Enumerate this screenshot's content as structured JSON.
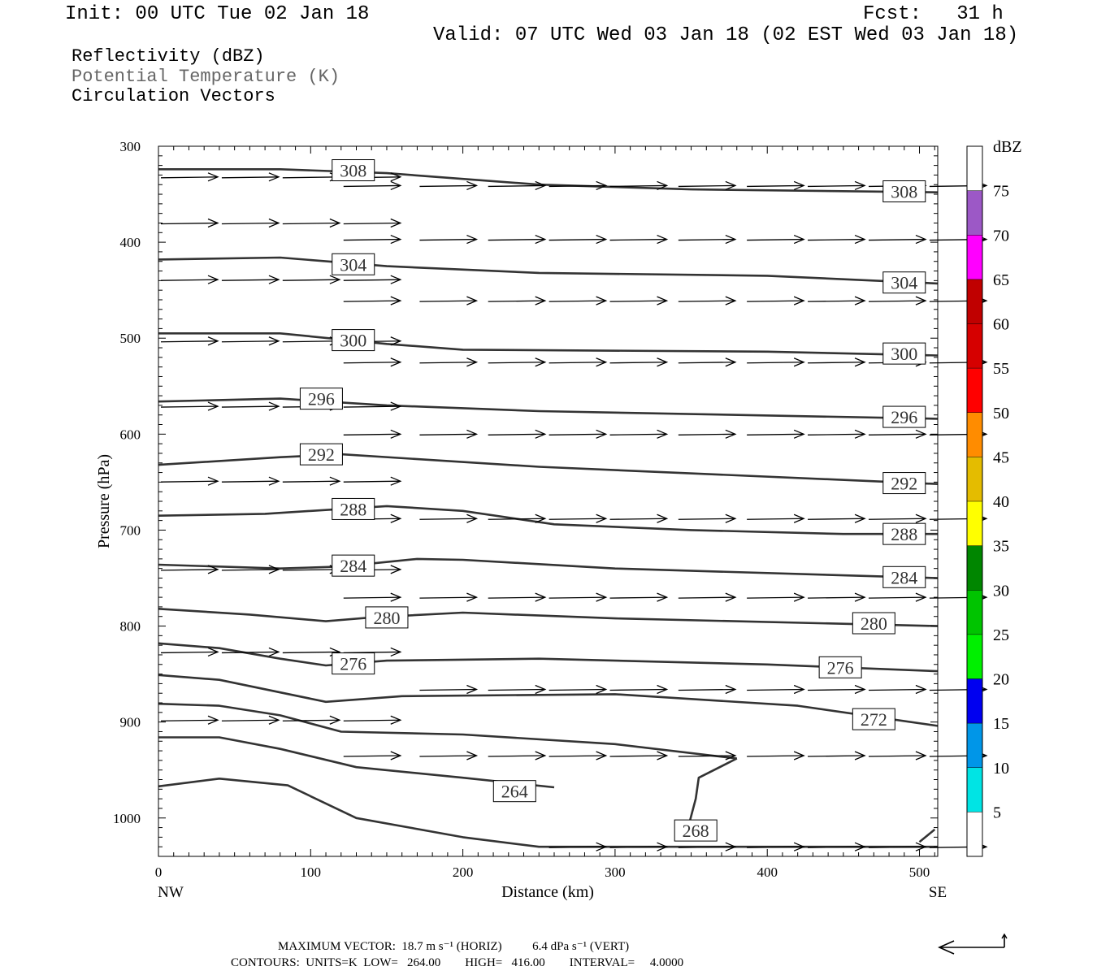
{
  "header": {
    "init": "Init: 00 UTC Tue 02 Jan 18",
    "fcst": "Fcst:   31 h",
    "valid": "Valid: 07 UTC Wed 03 Jan 18 (02 EST Wed 03 Jan 18)"
  },
  "legend_lines": {
    "reflectivity": "Reflectivity (dBZ)",
    "theta": "Potential Temperature (K)",
    "vectors": "Circulation Vectors"
  },
  "colors": {
    "contour": "#333333",
    "theta_text": "#666666",
    "frame": "#000000"
  },
  "chart_data": {
    "type": "cross-section",
    "xlabel": "Distance (km)",
    "ylabel": "Pressure (hPa)",
    "x_left_label": "NW",
    "x_right_label": "SE",
    "xlim": [
      0,
      512
    ],
    "ylim": [
      1040,
      300
    ],
    "x_ticks": [
      0,
      100,
      200,
      300,
      400,
      500
    ],
    "y_ticks": [
      300,
      400,
      500,
      600,
      700,
      800,
      900,
      1000
    ],
    "colorbar": {
      "unit": "dBZ",
      "levels": [
        5,
        10,
        15,
        20,
        25,
        30,
        35,
        40,
        45,
        50,
        55,
        60,
        65,
        70,
        75
      ],
      "colors": [
        "#00e4e4",
        "#0096e8",
        "#0000f0",
        "#00f000",
        "#00c400",
        "#008600",
        "#ffff00",
        "#e4bc00",
        "#ff8c00",
        "#ff0000",
        "#d60000",
        "#c00000",
        "#ff00ff",
        "#9c58c6"
      ]
    },
    "contours": [
      {
        "label": "308",
        "points": [
          [
            0,
            324
          ],
          [
            80,
            324
          ],
          [
            150,
            328
          ],
          [
            250,
            340
          ],
          [
            350,
            345
          ],
          [
            512,
            348
          ]
        ],
        "labels_at": [
          [
            128,
            325
          ],
          [
            490,
            347
          ]
        ]
      },
      {
        "label": "304",
        "points": [
          [
            0,
            418
          ],
          [
            80,
            416
          ],
          [
            150,
            425
          ],
          [
            250,
            432
          ],
          [
            400,
            435
          ],
          [
            512,
            443
          ]
        ],
        "labels_at": [
          [
            128,
            423
          ],
          [
            490,
            442
          ]
        ]
      },
      {
        "label": "300",
        "points": [
          [
            0,
            495
          ],
          [
            80,
            495
          ],
          [
            150,
            506
          ],
          [
            200,
            512
          ],
          [
            400,
            514
          ],
          [
            512,
            518
          ]
        ],
        "labels_at": [
          [
            128,
            502
          ],
          [
            490,
            516
          ]
        ]
      },
      {
        "label": "296",
        "points": [
          [
            0,
            566
          ],
          [
            80,
            563
          ],
          [
            150,
            570
          ],
          [
            250,
            576
          ],
          [
            512,
            584
          ]
        ],
        "labels_at": [
          [
            107,
            563
          ],
          [
            490,
            582
          ]
        ]
      },
      {
        "label": "292",
        "points": [
          [
            0,
            632
          ],
          [
            80,
            624
          ],
          [
            120,
            621
          ],
          [
            250,
            634
          ],
          [
            512,
            652
          ]
        ],
        "labels_at": [
          [
            107,
            621
          ],
          [
            490,
            651
          ]
        ]
      },
      {
        "label": "288",
        "points": [
          [
            0,
            685
          ],
          [
            70,
            683
          ],
          [
            150,
            675
          ],
          [
            200,
            680
          ],
          [
            260,
            694
          ],
          [
            350,
            700
          ],
          [
            450,
            704
          ],
          [
            512,
            704
          ]
        ],
        "labels_at": [
          [
            128,
            678
          ],
          [
            490,
            704
          ]
        ]
      },
      {
        "label": "284",
        "points": [
          [
            0,
            736
          ],
          [
            80,
            740
          ],
          [
            120,
            738
          ],
          [
            170,
            730
          ],
          [
            200,
            731
          ],
          [
            300,
            740
          ],
          [
            512,
            750
          ]
        ],
        "labels_at": [
          [
            128,
            737
          ],
          [
            490,
            749
          ]
        ]
      },
      {
        "label": "280",
        "points": [
          [
            0,
            782
          ],
          [
            60,
            788
          ],
          [
            110,
            795
          ],
          [
            140,
            791
          ],
          [
            200,
            786
          ],
          [
            300,
            792
          ],
          [
            512,
            800
          ]
        ],
        "labels_at": [
          [
            150,
            791
          ],
          [
            470,
            797
          ]
        ]
      },
      {
        "label": "276",
        "points": [
          [
            0,
            818
          ],
          [
            40,
            823
          ],
          [
            80,
            834
          ],
          [
            110,
            841
          ],
          [
            150,
            836
          ],
          [
            250,
            834
          ],
          [
            400,
            840
          ],
          [
            512,
            847
          ]
        ],
        "labels_at": [
          [
            128,
            839
          ],
          [
            448,
            843
          ]
        ]
      },
      {
        "label": "272",
        "points": [
          [
            0,
            851
          ],
          [
            40,
            856
          ],
          [
            110,
            879
          ],
          [
            160,
            873
          ],
          [
            300,
            871
          ],
          [
            420,
            883
          ],
          [
            512,
            904
          ]
        ],
        "labels_at": [
          [
            470,
            897
          ]
        ]
      },
      {
        "label": "",
        "points": [
          [
            0,
            881
          ],
          [
            40,
            883
          ],
          [
            80,
            893
          ],
          [
            120,
            910
          ],
          [
            200,
            913
          ],
          [
            300,
            923
          ],
          [
            380,
            938
          ]
        ]
      },
      {
        "label": "264",
        "points": [
          [
            0,
            916
          ],
          [
            40,
            916
          ],
          [
            80,
            928
          ],
          [
            130,
            947
          ],
          [
            200,
            958
          ],
          [
            260,
            968
          ]
        ],
        "labels_at": [
          [
            234,
            972
          ]
        ]
      },
      {
        "label": "268",
        "points": [
          [
            380,
            938
          ],
          [
            355,
            958
          ],
          [
            353,
            980
          ],
          [
            348,
            1010
          ]
        ],
        "labels_at": [
          [
            353,
            1013
          ]
        ]
      },
      {
        "label": "",
        "points": [
          [
            0,
            967
          ],
          [
            40,
            959
          ],
          [
            85,
            966
          ],
          [
            130,
            1000
          ],
          [
            200,
            1020
          ],
          [
            250,
            1030
          ],
          [
            512,
            1030
          ]
        ]
      },
      {
        "label": "",
        "points": [
          [
            510,
            1012
          ],
          [
            500,
            1025
          ]
        ]
      }
    ],
    "vector_rows": [
      {
        "p": 332,
        "x": [
          0,
          40,
          80,
          120
        ]
      },
      {
        "p": 341,
        "x": [
          120,
          170,
          215,
          255,
          295,
          340,
          385,
          425,
          465,
          505
        ]
      },
      {
        "p": 380,
        "x": [
          0,
          40,
          80,
          120
        ]
      },
      {
        "p": 397,
        "x": [
          120,
          170,
          215,
          255,
          295,
          340,
          385,
          425,
          465,
          505
        ]
      },
      {
        "p": 439,
        "x": [
          0,
          40,
          80,
          120
        ]
      },
      {
        "p": 461,
        "x": [
          120,
          170,
          215,
          255,
          295,
          340,
          385,
          425,
          465,
          505
        ]
      },
      {
        "p": 503,
        "x": [
          0,
          40,
          80,
          120
        ]
      },
      {
        "p": 525,
        "x": [
          120,
          170,
          215,
          255,
          295,
          340,
          385,
          425,
          465,
          505
        ]
      },
      {
        "p": 571,
        "x": [
          0,
          40,
          80,
          120
        ]
      },
      {
        "p": 600,
        "x": [
          120,
          170,
          215,
          255,
          295,
          340,
          385,
          425,
          465,
          505
        ]
      },
      {
        "p": 649,
        "x": [
          0,
          40,
          80,
          120
        ]
      },
      {
        "p": 688,
        "x": [
          120,
          170,
          215,
          255,
          295,
          340,
          385,
          425,
          465,
          505
        ]
      },
      {
        "p": 741,
        "x": [
          0,
          40,
          80,
          120
        ]
      },
      {
        "p": 770,
        "x": [
          120,
          170,
          215,
          255,
          295,
          340,
          385,
          425,
          465,
          505
        ]
      },
      {
        "p": 827,
        "x": [
          0,
          40,
          80,
          120
        ]
      },
      {
        "p": 866,
        "x": [
          170,
          215,
          255,
          295,
          340,
          385,
          425,
          465,
          505
        ]
      },
      {
        "p": 898,
        "x": [
          0,
          40,
          80,
          120
        ]
      },
      {
        "p": 935,
        "x": [
          120,
          170,
          215,
          255,
          295,
          340,
          385,
          425,
          465,
          505
        ]
      },
      {
        "p": 1030,
        "x": [
          255,
          295,
          340,
          385,
          425,
          465,
          505
        ]
      }
    ]
  },
  "footer": {
    "max_vector": "MAXIMUM VECTOR:  18.7 m s⁻¹ (HORIZ)          6.4 dPa s⁻¹ (VERT)",
    "contours": "CONTOURS:  UNITS=K  LOW=   264.00        HIGH=   416.00        INTERVAL=     4.0000"
  }
}
